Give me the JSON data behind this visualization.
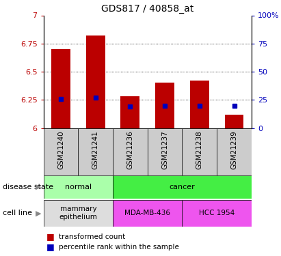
{
  "title": "GDS817 / 40858_at",
  "samples": [
    "GSM21240",
    "GSM21241",
    "GSM21236",
    "GSM21237",
    "GSM21238",
    "GSM21239"
  ],
  "transformed_counts": [
    6.7,
    6.82,
    6.28,
    6.4,
    6.42,
    6.12
  ],
  "percentile_ranks": [
    26.0,
    27.0,
    19.0,
    20.0,
    20.0,
    20.0
  ],
  "ylim": [
    6.0,
    7.0
  ],
  "ylim_right": [
    0,
    100
  ],
  "yticks_left": [
    6.0,
    6.25,
    6.5,
    6.75,
    7.0
  ],
  "ytick_labels_left": [
    "6",
    "6.25",
    "6.5",
    "6.75",
    "7"
  ],
  "yticks_right_pct": [
    0,
    25,
    50,
    75,
    100
  ],
  "bar_color": "#bb0000",
  "marker_color": "#0000bb",
  "bg_color": "#ffffff",
  "plot_bg": "#ffffff",
  "disease_normal_color": "#aaffaa",
  "disease_cancer_color": "#44ee44",
  "cell_normal_color": "#dddddd",
  "cell_mda_color": "#ee55ee",
  "cell_hcc_color": "#ee55ee",
  "sample_bg_color": "#cccccc",
  "disease_state_normal": "normal",
  "disease_state_cancer": "cancer",
  "cell_line_normal": "mammary\nepithelium",
  "cell_line_mda": "MDA-MB-436",
  "cell_line_hcc": "HCC 1954",
  "label_transformed": "transformed count",
  "label_percentile": "percentile rank within the sample"
}
